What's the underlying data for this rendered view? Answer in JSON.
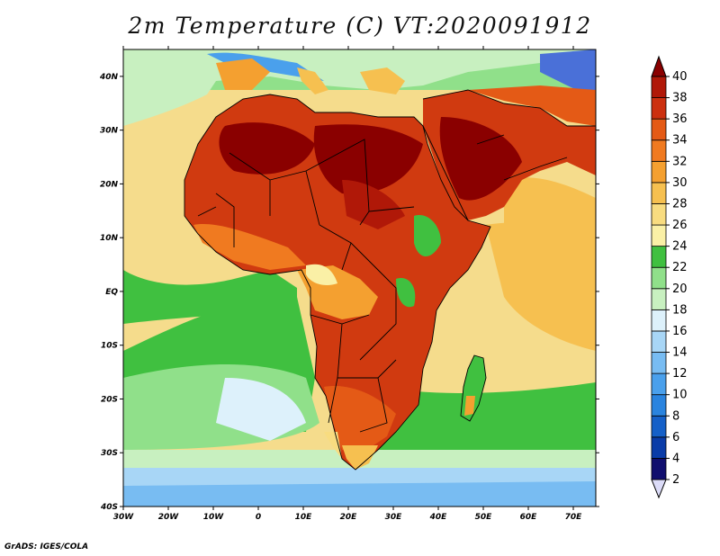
{
  "title": "2m Temperature (C) VT:2020091912",
  "credit": "GrADS: IGES/COLA",
  "map": {
    "projection": "lat-lon",
    "lon_range": [
      -30,
      75
    ],
    "lat_range": [
      -40,
      45
    ],
    "lon_ticks": [
      "30W",
      "20W",
      "10W",
      "0",
      "10E",
      "20E",
      "30E",
      "40E",
      "50E",
      "60E",
      "70E"
    ],
    "lat_ticks": [
      "40S",
      "30S",
      "20S",
      "10S",
      "EQ",
      "10N",
      "20N",
      "30N",
      "40N"
    ],
    "ocean_color": "#f5dc8c",
    "land_color": "#d03a10"
  },
  "colorbar": {
    "labels": [
      "2",
      "4",
      "6",
      "8",
      "10",
      "12",
      "14",
      "16",
      "18",
      "20",
      "22",
      "24",
      "26",
      "28",
      "30",
      "32",
      "34",
      "36",
      "38",
      "40"
    ],
    "colors": [
      "#100e6e",
      "#0a3ca8",
      "#1560c8",
      "#2a84df",
      "#4aa0ec",
      "#78bcf2",
      "#a8d6f6",
      "#ddf1fb",
      "#c8f0c0",
      "#90e08a",
      "#40c040",
      "#faf0a6",
      "#f8dc80",
      "#f6c050",
      "#f4a030",
      "#f07a20",
      "#e45a16",
      "#cc3010",
      "#b01808",
      "#8a0000"
    ]
  }
}
